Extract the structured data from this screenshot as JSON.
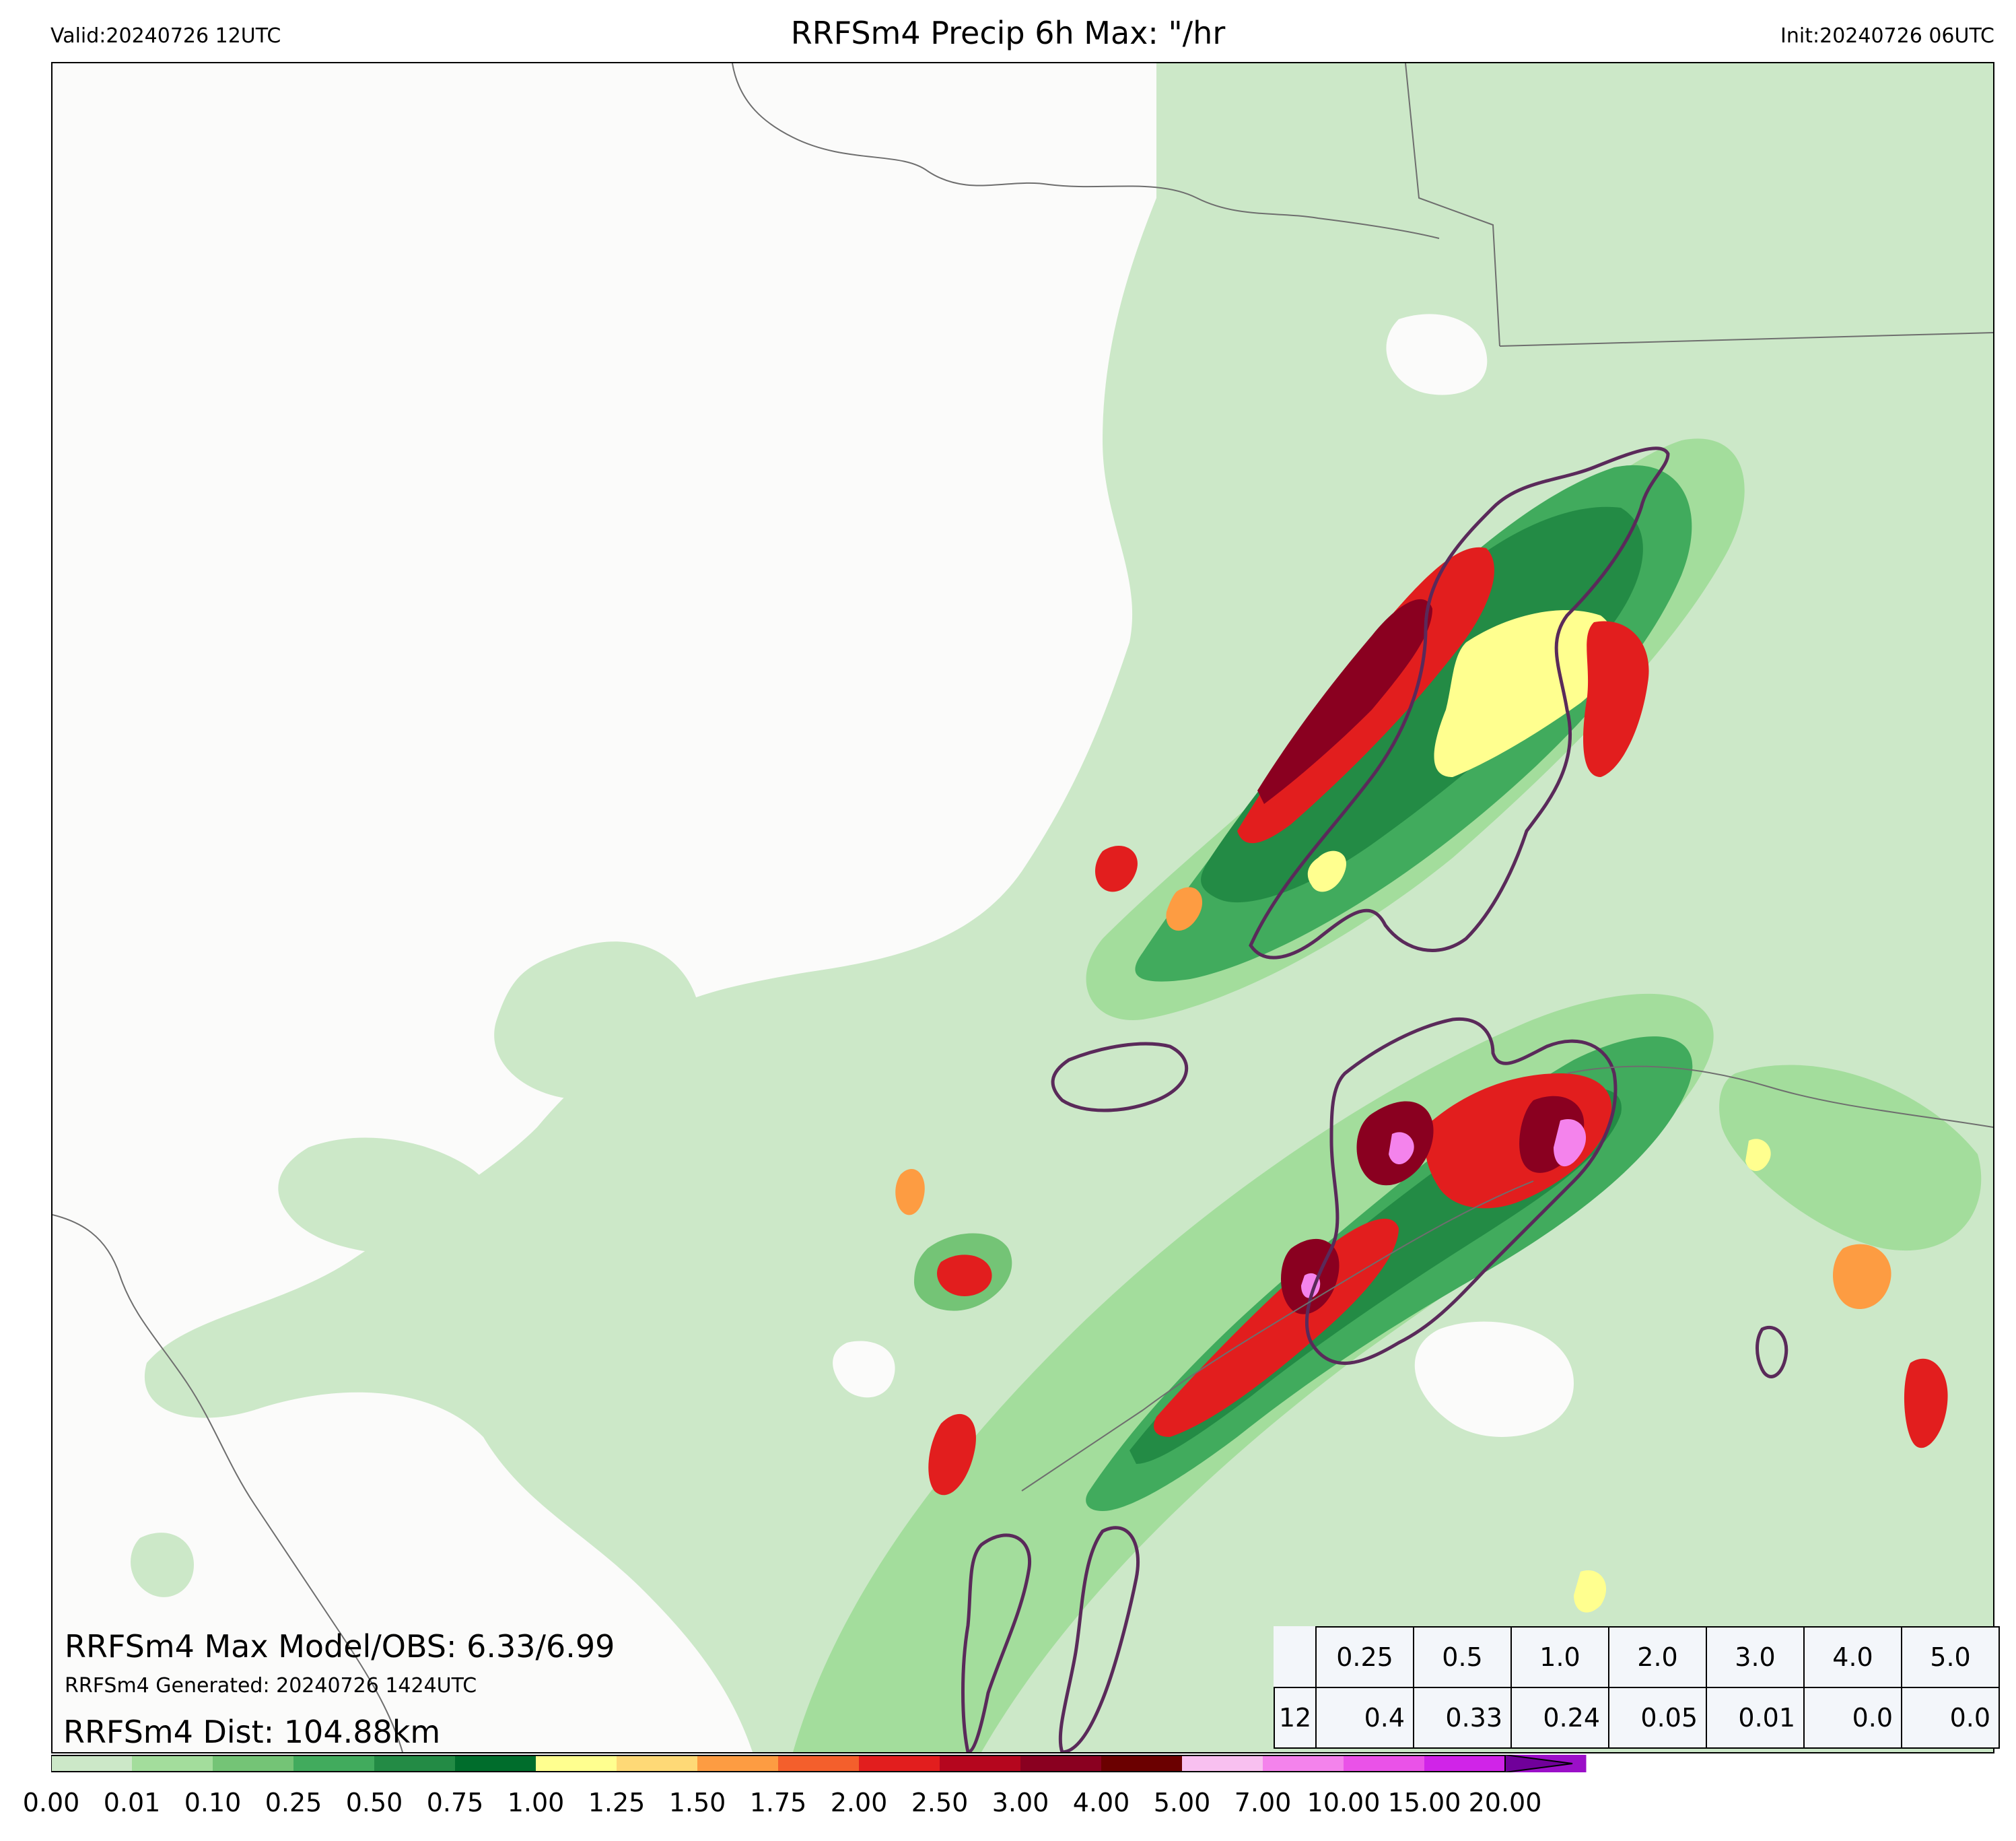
{
  "header": {
    "valid": "Valid:20240726 12UTC",
    "title": "RRFSm4 Precip 6h Max: \"/hr",
    "init": "Init:20240726 06UTC"
  },
  "annotations": {
    "max_model_obs": "RRFSm4 Max Model/OBS: 6.33/6.99",
    "generated": "RRFSm4 Generated: 20240726 1424UTC",
    "distance": "RRFSm4 Dist: 104.88km"
  },
  "stats_table": {
    "thresholds": [
      "0.25",
      "0.5",
      "1.0",
      "2.0",
      "3.0",
      "4.0",
      "5.0"
    ],
    "row_label": "12",
    "values": [
      "0.4",
      "0.33",
      "0.24",
      "0.05",
      "0.01",
      "0.0",
      "0.0"
    ]
  },
  "colorbar": {
    "ticks": [
      "0.00",
      "0.01",
      "0.10",
      "0.25",
      "0.50",
      "0.75",
      "1.00",
      "1.25",
      "1.50",
      "1.75",
      "2.00",
      "2.50",
      "3.00",
      "4.00",
      "5.00",
      "7.00",
      "10.00",
      "15.00",
      "20.00"
    ],
    "colors": [
      "#ffffff",
      "#cce8c8",
      "#a3dd9c",
      "#74c476",
      "#41ab5d",
      "#238b45",
      "#006d2c",
      "#ffff8f",
      "#fed976",
      "#fd9c42",
      "#f45f2c",
      "#e21e1e",
      "#b5061e",
      "#8a0020",
      "#6b0000",
      "#f8c0f0",
      "#f483ec",
      "#ea52e8",
      "#d024e8",
      "#9b0fc8"
    ],
    "extend_color": "#70009a"
  },
  "map": {
    "background": "#fbfbfa",
    "precip_colors": {
      "light": "#cce8c8",
      "light2": "#a3dd9c",
      "mid": "#74c476",
      "mid2": "#41ab5d",
      "dark": "#238b45",
      "yellow": "#ffff8f",
      "orange": "#fd9c42",
      "red": "#e21e1e",
      "maroon": "#8a0020",
      "pink": "#f483ec"
    },
    "obs_contour_color": "#5a2a5a",
    "border_color": "#6e6e6e"
  }
}
